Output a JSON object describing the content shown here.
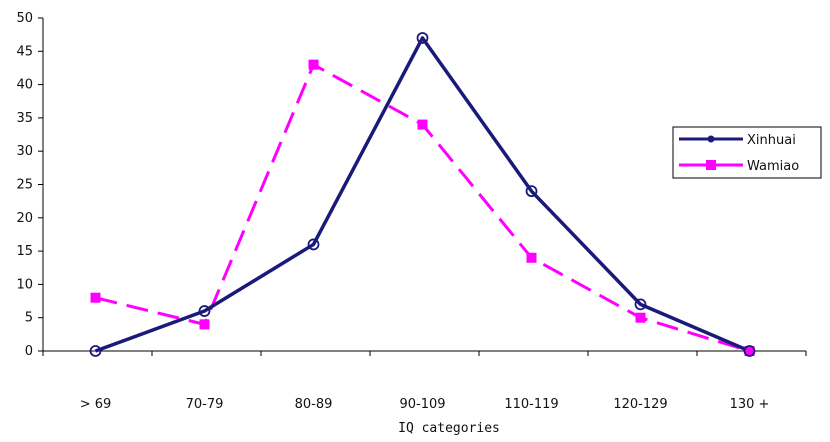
{
  "chart_data": {
    "type": "line",
    "categories": [
      "> 69",
      "70-79",
      "80-89",
      "90-109",
      "110-119",
      "120-129",
      "130 +"
    ],
    "series": [
      {
        "name": "Xinhuai",
        "values": [
          0,
          6,
          16,
          47,
          24,
          7,
          0
        ],
        "color": "#1a1a7a",
        "marker": "circle",
        "dash": "solid"
      },
      {
        "name": "Wamiao",
        "values": [
          8,
          4,
          43,
          34,
          14,
          5,
          0
        ],
        "color": "#ff00ff",
        "marker": "square",
        "dash": "dashed"
      }
    ],
    "title": "",
    "xlabel": "IQ categories",
    "ylabel": "",
    "ylim": [
      0,
      50
    ],
    "yticks": [
      "0",
      "5",
      "10",
      "15",
      "20",
      "25",
      "30",
      "35",
      "40",
      "45",
      "50"
    ],
    "grid": false,
    "legend_position": "right"
  }
}
